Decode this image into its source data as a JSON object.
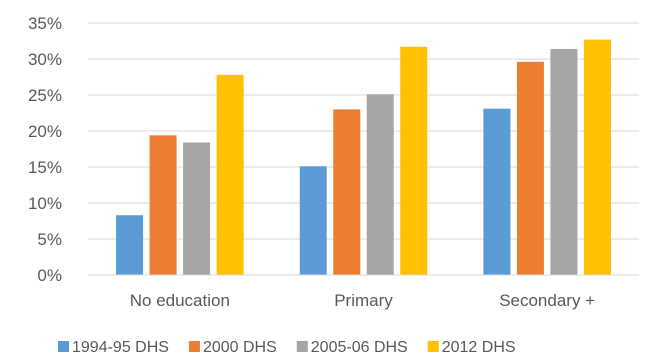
{
  "chart_data": {
    "type": "bar",
    "categories": [
      "No education",
      "Primary",
      "Secondary +"
    ],
    "series": [
      {
        "name": "1994-95 DHS",
        "color": "#5b9bd5",
        "values": [
          8.3,
          15.1,
          23.1
        ]
      },
      {
        "name": "2000 DHS",
        "color": "#ed7d31",
        "values": [
          19.4,
          23.0,
          29.6
        ]
      },
      {
        "name": "2005-06 DHS",
        "color": "#a5a5a5",
        "values": [
          18.4,
          25.1,
          31.4
        ]
      },
      {
        "name": "2012 DHS",
        "color": "#ffc000",
        "values": [
          27.8,
          31.7,
          32.7
        ]
      }
    ],
    "ylim": [
      0,
      35
    ],
    "yticks": [
      "0%",
      "5%",
      "10%",
      "15%",
      "20%",
      "25%",
      "30%",
      "35%"
    ],
    "grid": true,
    "legend": "bottom"
  }
}
